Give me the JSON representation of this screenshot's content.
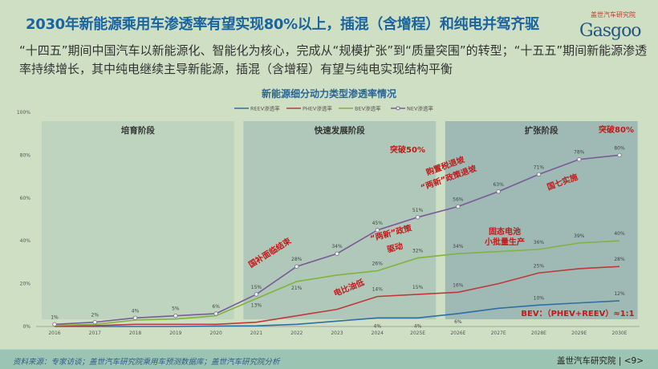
{
  "title": "2030年新能源乘用车渗透率有望实现80%以上，插混（含增程）和纯电并驾齐驱",
  "logo": {
    "cn": "盖世汽车研究院",
    "en": "Gasgoo"
  },
  "lead": "“十四五”期间中国汽车以新能源化、智能化为核心，完成从“规模扩张”到“质量突围”的转型；“十五五”期间新能源渗透率持续增长，其中纯电继续主导新能源，插混（含增程）有望与纯电实现结构平衡",
  "footer": {
    "source": "资料来源：专家访谈；盖世汽车研究院乘用车预测数据库；盖世汽车研究院分析",
    "org": "盖世汽车研究院 | <9>"
  },
  "chart_data": {
    "type": "line",
    "title": "新能源细分动力类型渗透率情况",
    "legend_position": "top-right",
    "categories": [
      "2016",
      "2017",
      "2018",
      "2019",
      "2020",
      "2021",
      "2022",
      "2023",
      "2024",
      "2025E",
      "2026E",
      "2027E",
      "2028E",
      "2029E",
      "2030E"
    ],
    "yticks": [
      "0%",
      "20%",
      "40%",
      "60%",
      "80%",
      "100%"
    ],
    "ylim": [
      0,
      100
    ],
    "series": [
      {
        "name": "REEV渗透率",
        "color": "#2e6ea6",
        "values": [
          0,
          0,
          0,
          0,
          0.2,
          0.3,
          1,
          2.5,
          4,
          4,
          6,
          8.5,
          10,
          11,
          12
        ],
        "labels": [
          null,
          null,
          null,
          null,
          null,
          null,
          null,
          null,
          "4%",
          "4%",
          "6%",
          null,
          "10%",
          null,
          "12%"
        ]
      },
      {
        "name": "PHEV渗透率",
        "color": "#c0383a",
        "values": [
          0.3,
          0.4,
          1,
          1,
          1,
          2,
          5,
          8,
          14,
          15,
          16,
          20,
          25,
          27,
          28
        ],
        "labels": [
          null,
          null,
          null,
          null,
          null,
          null,
          null,
          null,
          "14%",
          "15%",
          "16%",
          null,
          "25%",
          null,
          "28%"
        ]
      },
      {
        "name": "BEV渗透率",
        "color": "#80b43c",
        "values": [
          0.5,
          1,
          3,
          3.5,
          5,
          13,
          21,
          24,
          26,
          32,
          34,
          35,
          36,
          39,
          40
        ],
        "labels": [
          null,
          null,
          null,
          null,
          null,
          "13%",
          "21%",
          null,
          "26%",
          "32%",
          "34%",
          null,
          "36%",
          "39%",
          "40%"
        ]
      },
      {
        "name": "NEV渗透率",
        "color": "#7a5a9a",
        "values": [
          1,
          2,
          4,
          5,
          6,
          15,
          28,
          34,
          45,
          51,
          56,
          63,
          71,
          78,
          80
        ],
        "labels": [
          "1%",
          "2%",
          "4%",
          "5%",
          "6%",
          "15%",
          "28%",
          "34%",
          "45%",
          "51%",
          "56%",
          "63%",
          "71%",
          "78%",
          "80%"
        ]
      }
    ],
    "phases": [
      {
        "label": "培育阶段",
        "from": "2016",
        "to": "2020",
        "color": "#bfd4bf"
      },
      {
        "label": "快速发展阶段",
        "from": "2021",
        "to": "2025E",
        "color": "#afc8b9"
      },
      {
        "label": "扩张阶段",
        "from": "2026E",
        "to": "2030E",
        "color": "#9fbab4"
      }
    ],
    "annotations": [
      "国补面临结束",
      "电比油低",
      "突破50%",
      "购置税退坡",
      "“两新”政策退坡",
      "“两新”政策",
      "驱动",
      "固态电池",
      "小批量生产",
      "国七实施",
      "突破80%",
      "BEV：（PHEV+REEV）≈1:1"
    ]
  }
}
